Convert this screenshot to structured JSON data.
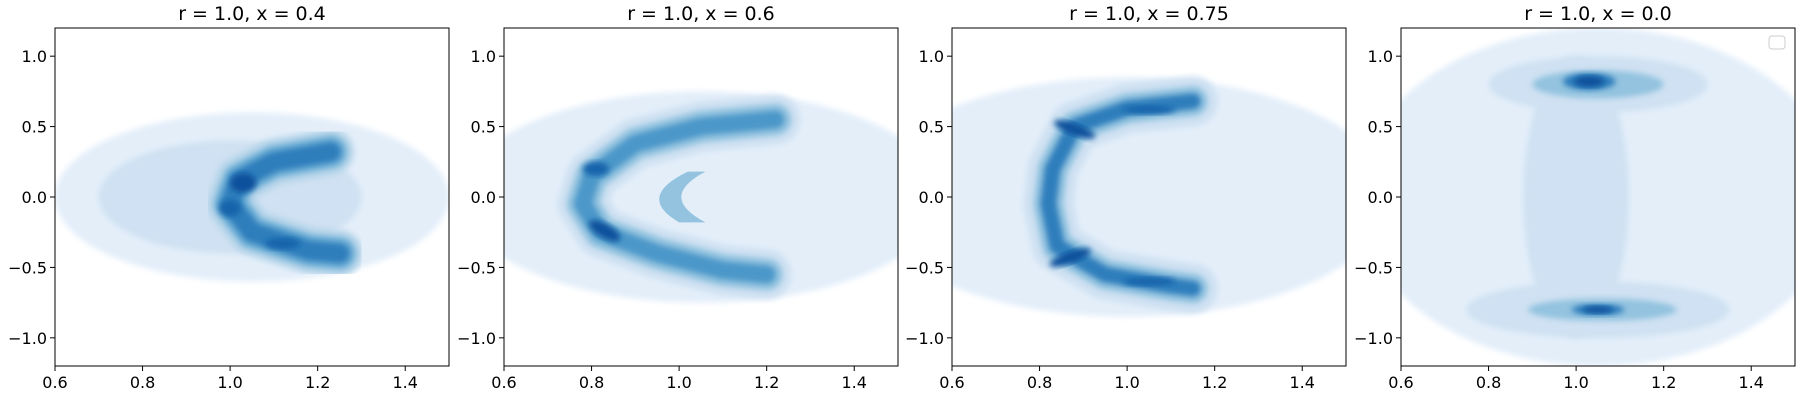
{
  "figure": {
    "panels": [
      {
        "title": "r = 1.0, x = 0.4"
      },
      {
        "title": "r = 1.0, x = 0.6"
      },
      {
        "title": "r = 1.0, x = 0.75"
      },
      {
        "title": "r = 1.0, x = 0.0"
      }
    ]
  },
  "chart_data": [
    {
      "type": "contour",
      "title": "r = 1.0, x = 0.4",
      "xlabel": "",
      "ylabel": "",
      "xlim": [
        0.6,
        1.5
      ],
      "ylim": [
        -1.2,
        1.2
      ],
      "xticks": [
        "0.6",
        "0.8",
        "1.0",
        "1.2",
        "1.4"
      ],
      "yticks": [
        "−1.0",
        "−0.5",
        "0.0",
        "0.5",
        "1.0"
      ],
      "colormap": "Blues",
      "shape": "crescent",
      "density_peaks": [
        {
          "x": 1.03,
          "y": 0.15,
          "level": "high"
        },
        {
          "x": 1.02,
          "y": -0.05,
          "level": "high"
        },
        {
          "x": 1.13,
          "y": -0.33,
          "level": "high"
        }
      ],
      "legend": false
    },
    {
      "type": "contour",
      "title": "r = 1.0, x = 0.6",
      "xlabel": "",
      "ylabel": "",
      "xlim": [
        0.6,
        1.5
      ],
      "ylim": [
        -1.2,
        1.2
      ],
      "xticks": [
        "0.6",
        "0.8",
        "1.0",
        "1.2",
        "1.4"
      ],
      "yticks": [
        "−1.0",
        "−0.5",
        "0.0",
        "0.5",
        "1.0"
      ],
      "colormap": "Blues",
      "shape": "crescent",
      "density_peaks": [
        {
          "x": 0.83,
          "y": -0.23,
          "level": "high"
        },
        {
          "x": 0.81,
          "y": 0.2,
          "level": "high"
        },
        {
          "x": 1.1,
          "y": 0.5,
          "level": "medium"
        },
        {
          "x": 1.1,
          "y": -0.5,
          "level": "medium"
        }
      ],
      "legend": false
    },
    {
      "type": "contour",
      "title": "r = 1.0, x = 0.75",
      "xlabel": "",
      "ylabel": "",
      "xlim": [
        0.6,
        1.5
      ],
      "ylim": [
        -1.2,
        1.2
      ],
      "xticks": [
        "0.6",
        "0.8",
        "1.0",
        "1.2",
        "1.4"
      ],
      "yticks": [
        "−1.0",
        "−0.5",
        "0.0",
        "0.5",
        "1.0"
      ],
      "colormap": "Blues",
      "shape": "crescent",
      "density_peaks": [
        {
          "x": 0.88,
          "y": 0.48,
          "level": "high"
        },
        {
          "x": 0.88,
          "y": -0.43,
          "level": "high"
        },
        {
          "x": 1.05,
          "y": 0.62,
          "level": "medium"
        },
        {
          "x": 1.05,
          "y": -0.6,
          "level": "medium"
        }
      ],
      "legend": false
    },
    {
      "type": "contour",
      "title": "r = 1.0, x = 0.0",
      "xlabel": "",
      "ylabel": "",
      "xlim": [
        0.6,
        1.5
      ],
      "ylim": [
        -1.2,
        1.2
      ],
      "xticks": [
        "0.6",
        "0.8",
        "1.0",
        "1.2",
        "1.4"
      ],
      "yticks": [
        "−1.0",
        "−0.5",
        "0.0",
        "0.5",
        "1.0"
      ],
      "colormap": "Blues",
      "shape": "two-lobes",
      "density_peaks": [
        {
          "x": 1.03,
          "y": 0.82,
          "level": "high"
        },
        {
          "x": 1.05,
          "y": -0.8,
          "level": "high"
        }
      ],
      "legend": true
    }
  ]
}
